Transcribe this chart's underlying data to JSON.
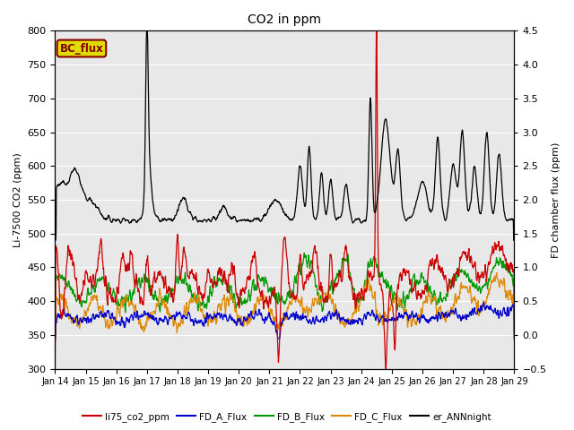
{
  "title": "CO2 in ppm",
  "ylabel_left": "Li-7500 CO2 (ppm)",
  "ylabel_right": "FD chamber flux (ppm)",
  "ylim_left": [
    300,
    800
  ],
  "ylim_right": [
    -0.5,
    4.5
  ],
  "yticks_left": [
    300,
    350,
    400,
    450,
    500,
    550,
    600,
    650,
    700,
    750,
    800
  ],
  "yticks_right": [
    -0.5,
    0.0,
    0.5,
    1.0,
    1.5,
    2.0,
    2.5,
    3.0,
    3.5,
    4.0,
    4.5
  ],
  "xlim": [
    0,
    15
  ],
  "xtick_labels": [
    "Jan 14",
    "Jan 15",
    "Jan 16",
    "Jan 17",
    "Jan 18",
    "Jan 19",
    "Jan 20",
    "Jan 21",
    "Jan 22",
    "Jan 23",
    "Jan 24",
    "Jan 25",
    "Jan 26",
    "Jan 27",
    "Jan 28",
    "Jan 29"
  ],
  "bg_color": "#e8e8e8",
  "legend_entries": [
    "li75_co2_ppm",
    "FD_A_Flux",
    "FD_B_Flux",
    "FD_C_Flux",
    "er_ANNnight"
  ],
  "legend_colors": [
    "#cc0000",
    "#0000cc",
    "#009900",
    "#dd8800",
    "#000000"
  ],
  "annotation_text": "BC_flux",
  "annotation_color": "#880000",
  "annotation_bg": "#dddd00",
  "figsize": [
    6.4,
    4.8
  ],
  "dpi": 100
}
